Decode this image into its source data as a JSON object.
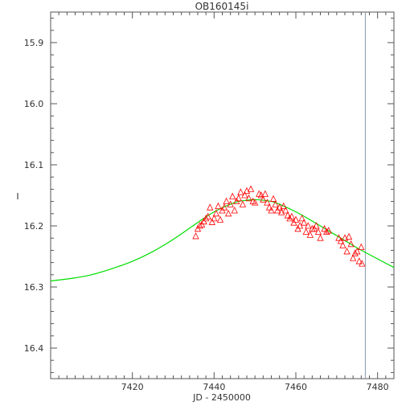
{
  "chart_data": {
    "type": "scatter",
    "title": "OB160145i",
    "xlabel": "JD - 2450000",
    "ylabel": "I",
    "xlim": [
      7400,
      7484
    ],
    "ylim": [
      16.45,
      15.85
    ],
    "y_inverted": true,
    "grid": false,
    "x_ticks": [
      7420,
      7440,
      7460,
      7480
    ],
    "x_tick_labels": [
      "7420",
      "7440",
      "7460",
      "7480"
    ],
    "y_ticks": [
      15.9,
      16.0,
      16.1,
      16.2,
      16.3,
      16.4
    ],
    "y_tick_labels": [
      "15.9",
      "16.0",
      "16.1",
      "16.2",
      "16.3",
      "16.4"
    ],
    "marker": "triangle-open",
    "colors": {
      "points": "#ff0000",
      "model": "#00dd00",
      "vline": "#8899aa",
      "axes": "#555555"
    },
    "vertical_line_x": 7477,
    "model_curve": {
      "x": [
        7400,
        7405,
        7410,
        7415,
        7420,
        7425,
        7430,
        7435,
        7440,
        7445,
        7448,
        7450,
        7452,
        7455,
        7460,
        7465,
        7470,
        7475,
        7480,
        7484
      ],
      "y": [
        16.29,
        16.286,
        16.28,
        16.27,
        16.258,
        16.242,
        16.222,
        16.199,
        16.177,
        16.162,
        16.158,
        16.157,
        16.158,
        16.162,
        16.177,
        16.196,
        16.216,
        16.236,
        16.254,
        16.268
      ]
    },
    "series": [
      {
        "x": [
          7435.5,
          7436,
          7436.5,
          7437,
          7437.5,
          7438,
          7438.5,
          7439,
          7439.5,
          7440,
          7440.5,
          7441,
          7441.5,
          7442,
          7442.5,
          7443,
          7443.5,
          7444,
          7444.5,
          7445,
          7445.5,
          7446,
          7446.5,
          7447,
          7447.5,
          7448,
          7448.5,
          7449,
          7449.5,
          7450,
          7451,
          7451.5,
          7452,
          7452.5,
          7453,
          7453.5,
          7454,
          7454.5,
          7455,
          7455.5,
          7456,
          7456.5,
          7457,
          7457.5,
          7458,
          7458.5,
          7459,
          7459.5,
          7460,
          7460.5,
          7461,
          7461.5,
          7462,
          7462.5,
          7463,
          7463.5,
          7464,
          7464.5,
          7465,
          7465.5,
          7466,
          7467,
          7467.5,
          7468,
          7470.5,
          7471,
          7471.5,
          7472,
          7472.5,
          7473,
          7473.5,
          7474,
          7474.5,
          7475,
          7475.5,
          7476,
          7476.2
        ],
        "y": [
          16.217,
          16.205,
          16.2,
          16.198,
          16.193,
          16.188,
          16.185,
          16.17,
          16.194,
          16.188,
          16.18,
          16.168,
          16.19,
          16.175,
          16.17,
          16.16,
          16.18,
          16.165,
          16.152,
          16.175,
          16.16,
          16.155,
          16.145,
          16.165,
          16.15,
          16.143,
          16.155,
          16.14,
          16.16,
          16.162,
          16.148,
          16.15,
          16.157,
          16.148,
          16.162,
          16.17,
          16.175,
          16.156,
          16.165,
          16.175,
          16.17,
          16.178,
          16.168,
          16.175,
          16.183,
          16.188,
          16.185,
          16.195,
          16.19,
          16.205,
          16.2,
          16.188,
          16.195,
          16.21,
          16.2,
          16.215,
          16.205,
          16.205,
          16.2,
          16.21,
          16.22,
          16.205,
          16.21,
          16.208,
          16.22,
          16.225,
          16.232,
          16.22,
          16.242,
          16.218,
          16.23,
          16.253,
          16.245,
          16.242,
          16.258,
          16.235,
          16.262
        ]
      }
    ]
  }
}
